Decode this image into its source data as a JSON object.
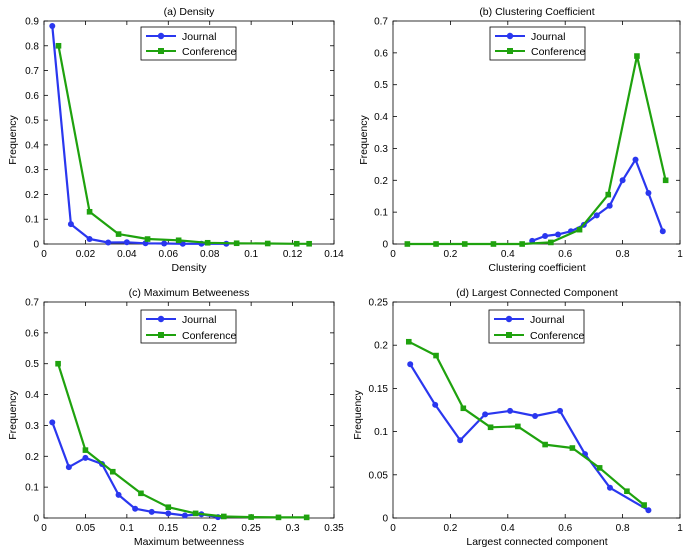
{
  "colors": {
    "journal": "#2a37ef",
    "conference": "#1fa20e",
    "axis": "#000000",
    "background": "#ffffff"
  },
  "chart_data": [
    {
      "type": "line",
      "title": "(a) Density",
      "xlabel": "Density",
      "ylabel": "Frequency",
      "xlim": [
        0,
        0.14
      ],
      "ylim": [
        0,
        0.9
      ],
      "xticks": [
        0,
        0.02,
        0.04,
        0.06,
        0.08,
        0.1,
        0.12,
        0.14
      ],
      "yticks": [
        0,
        0.1,
        0.2,
        0.3,
        0.4,
        0.5,
        0.6,
        0.7,
        0.8,
        0.9
      ],
      "xtick_labels": [
        "0",
        "0.02",
        "0.04",
        "0.06",
        "0.08",
        "0.1",
        "0.12",
        "0.14"
      ],
      "ytick_labels": [
        "0",
        "0.1",
        "0.2",
        "0.3",
        "0.4",
        "0.5",
        "0.6",
        "0.7",
        "0.8",
        "0.9"
      ],
      "legend": [
        "Journal",
        "Conference"
      ],
      "legend_position": "top-right",
      "series": [
        {
          "name": "Journal",
          "color": "#2a37ef",
          "marker": "circle",
          "x": [
            0.004,
            0.013,
            0.022,
            0.031,
            0.04,
            0.049,
            0.058,
            0.067,
            0.076,
            0.088
          ],
          "y": [
            0.88,
            0.08,
            0.02,
            0.006,
            0.007,
            0.003,
            0.002,
            0.001,
            0.001,
            0.001
          ]
        },
        {
          "name": "Conference",
          "color": "#1fa20e",
          "marker": "square",
          "x": [
            0.007,
            0.022,
            0.036,
            0.05,
            0.065,
            0.079,
            0.093,
            0.108,
            0.122,
            0.128
          ],
          "y": [
            0.8,
            0.13,
            0.04,
            0.02,
            0.015,
            0.005,
            0.003,
            0.002,
            0.001,
            0.001
          ]
        }
      ]
    },
    {
      "type": "line",
      "title": "(b) Clustering Coefficient",
      "xlabel": "Clustering coefficient",
      "ylabel": "Frequency",
      "xlim": [
        0,
        1
      ],
      "ylim": [
        0,
        0.7
      ],
      "xticks": [
        0,
        0.2,
        0.4,
        0.6,
        0.8,
        1
      ],
      "yticks": [
        0,
        0.1,
        0.2,
        0.3,
        0.4,
        0.5,
        0.6,
        0.7
      ],
      "xtick_labels": [
        "0",
        "0.2",
        "0.4",
        "0.6",
        "0.8",
        "1"
      ],
      "ytick_labels": [
        "0",
        "0.1",
        "0.2",
        "0.3",
        "0.4",
        "0.5",
        "0.6",
        "0.7"
      ],
      "legend": [
        "Journal",
        "Conference"
      ],
      "legend_position": "top-left",
      "series": [
        {
          "name": "Journal",
          "color": "#2a37ef",
          "marker": "circle",
          "x": [
            0.485,
            0.53,
            0.575,
            0.62,
            0.665,
            0.71,
            0.755,
            0.8,
            0.845,
            0.89,
            0.94
          ],
          "y": [
            0.01,
            0.025,
            0.03,
            0.04,
            0.06,
            0.09,
            0.12,
            0.2,
            0.265,
            0.16,
            0.04
          ]
        },
        {
          "name": "Conference",
          "color": "#1fa20e",
          "marker": "square",
          "x": [
            0.05,
            0.15,
            0.25,
            0.35,
            0.45,
            0.55,
            0.65,
            0.75,
            0.85,
            0.95
          ],
          "y": [
            0.0,
            0.0,
            0.0,
            0.0,
            0.0,
            0.005,
            0.045,
            0.155,
            0.59,
            0.2
          ]
        }
      ]
    },
    {
      "type": "line",
      "title": "(c) Maximum Betweeness",
      "xlabel": "Maximum betweenness",
      "ylabel": "Frequency",
      "xlim": [
        0,
        0.35
      ],
      "ylim": [
        0,
        0.7
      ],
      "xticks": [
        0,
        0.05,
        0.1,
        0.15,
        0.2,
        0.25,
        0.3,
        0.35
      ],
      "yticks": [
        0,
        0.1,
        0.2,
        0.3,
        0.4,
        0.5,
        0.6,
        0.7
      ],
      "xtick_labels": [
        "0",
        "0.05",
        "0.1",
        "0.15",
        "0.2",
        "0.25",
        "0.3",
        "0.35"
      ],
      "ytick_labels": [
        "0",
        "0.1",
        "0.2",
        "0.3",
        "0.4",
        "0.5",
        "0.6",
        "0.7"
      ],
      "legend": [
        "Journal",
        "Conference"
      ],
      "legend_position": "top-center",
      "series": [
        {
          "name": "Journal",
          "color": "#2a37ef",
          "marker": "circle",
          "x": [
            0.01,
            0.03,
            0.05,
            0.07,
            0.09,
            0.11,
            0.13,
            0.15,
            0.17,
            0.19,
            0.21
          ],
          "y": [
            0.31,
            0.165,
            0.195,
            0.175,
            0.075,
            0.03,
            0.02,
            0.015,
            0.008,
            0.012,
            0.003
          ]
        },
        {
          "name": "Conference",
          "color": "#1fa20e",
          "marker": "square",
          "x": [
            0.017,
            0.05,
            0.083,
            0.117,
            0.15,
            0.183,
            0.217,
            0.25,
            0.283,
            0.317
          ],
          "y": [
            0.5,
            0.22,
            0.15,
            0.08,
            0.035,
            0.015,
            0.005,
            0.003,
            0.002,
            0.002
          ]
        }
      ]
    },
    {
      "type": "line",
      "title": "(d) Largest Connected Component",
      "xlabel": "Largest connected component",
      "ylabel": "Frequency",
      "xlim": [
        0,
        1
      ],
      "ylim": [
        0,
        0.25
      ],
      "xticks": [
        0,
        0.2,
        0.4,
        0.6,
        0.8,
        1
      ],
      "yticks": [
        0,
        0.05,
        0.1,
        0.15,
        0.2,
        0.25
      ],
      "xtick_labels": [
        "0",
        "0.2",
        "0.4",
        "0.6",
        "0.8",
        "1"
      ],
      "ytick_labels": [
        "0",
        "0.05",
        "0.1",
        "0.15",
        "0.2",
        "0.25"
      ],
      "legend": [
        "Journal",
        "Conference"
      ],
      "legend_position": "top-center",
      "series": [
        {
          "name": "Journal",
          "color": "#2a37ef",
          "marker": "circle",
          "x": [
            0.06,
            0.147,
            0.234,
            0.321,
            0.408,
            0.495,
            0.582,
            0.669,
            0.756,
            0.89
          ],
          "y": [
            0.178,
            0.131,
            0.09,
            0.12,
            0.124,
            0.118,
            0.124,
            0.074,
            0.035,
            0.009
          ]
        },
        {
          "name": "Conference",
          "color": "#1fa20e",
          "marker": "square",
          "x": [
            0.055,
            0.15,
            0.245,
            0.34,
            0.435,
            0.53,
            0.625,
            0.72,
            0.815,
            0.875
          ],
          "y": [
            0.204,
            0.188,
            0.127,
            0.105,
            0.106,
            0.085,
            0.081,
            0.058,
            0.031,
            0.015
          ]
        }
      ]
    }
  ]
}
